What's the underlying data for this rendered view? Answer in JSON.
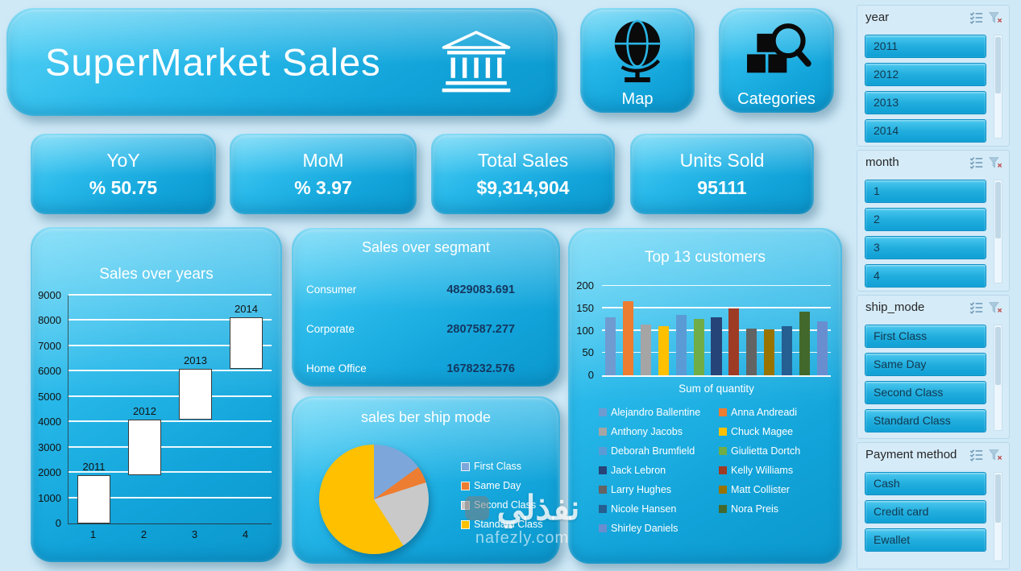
{
  "header": {
    "title": "SuperMarket Sales"
  },
  "nav": {
    "map_label": "Map",
    "categories_label": "Categories"
  },
  "kpis": [
    {
      "title": "YoY",
      "value": "% 50.75"
    },
    {
      "title": "MoM",
      "value": "% 3.97"
    },
    {
      "title": "Total Sales",
      "value": "$9,314,904"
    },
    {
      "title": "Units Sold",
      "value": "95111"
    }
  ],
  "chart_data": [
    {
      "type": "bar",
      "subtype": "waterfall",
      "title": "Sales over years",
      "categories": [
        "1",
        "2",
        "3",
        "4"
      ],
      "bars": [
        {
          "label": "2011",
          "start": 0,
          "end": 1900
        },
        {
          "label": "2012",
          "start": 1900,
          "end": 4100
        },
        {
          "label": "2013",
          "start": 4100,
          "end": 6100
        },
        {
          "label": "2014",
          "start": 6100,
          "end": 8150
        }
      ],
      "ylim": [
        0,
        9000
      ],
      "ytick_step": 1000,
      "bar_color": "#ffffff",
      "grid": true
    },
    {
      "type": "table",
      "title": "Sales over segmant",
      "rows": [
        {
          "label": "Consumer",
          "value": "4829083.691"
        },
        {
          "label": "Corporate",
          "value": "2807587.277"
        },
        {
          "label": "Home Office",
          "value": "1678232.576"
        }
      ]
    },
    {
      "type": "pie",
      "title": "sales ber ship mode",
      "legend_position": "right",
      "slices": [
        {
          "label": "First Class",
          "pct": 15,
          "color": "#7da7db"
        },
        {
          "label": "Same Day",
          "pct": 5,
          "color": "#ed7d31"
        },
        {
          "label": "Second Class",
          "pct": 21,
          "color": "#c9c9c9"
        },
        {
          "label": "Standard Class",
          "pct": 59,
          "color": "#ffc000"
        }
      ]
    },
    {
      "type": "bar",
      "title": "Top 13 customers",
      "xlabel": "Sum of quantity",
      "ylim": [
        0,
        200
      ],
      "ytick_step": 50,
      "grid": true,
      "legend_position": "bottom",
      "series": [
        {
          "name": "Alejandro Ballentine",
          "value": 130,
          "color": "#6f9bd1"
        },
        {
          "name": "Anna Andreadi",
          "value": 165,
          "color": "#ed7d31"
        },
        {
          "name": "Anthony Jacobs",
          "value": 113,
          "color": "#a5a5a5"
        },
        {
          "name": "Chuck Magee",
          "value": 110,
          "color": "#ffc000"
        },
        {
          "name": "Deborah Brumfield",
          "value": 135,
          "color": "#5b9bd5"
        },
        {
          "name": "Giulietta Dortch",
          "value": 127,
          "color": "#70ad47"
        },
        {
          "name": "Jack Lebron",
          "value": 130,
          "color": "#264478"
        },
        {
          "name": "Kelly Williams",
          "value": 150,
          "color": "#9e3b25"
        },
        {
          "name": "Larry Hughes",
          "value": 105,
          "color": "#636363"
        },
        {
          "name": "Matt Collister",
          "value": 103,
          "color": "#997300"
        },
        {
          "name": "Nicole Hansen",
          "value": 110,
          "color": "#255e91"
        },
        {
          "name": "Nora Preis",
          "value": 142,
          "color": "#43682b"
        },
        {
          "name": "Shirley Daniels",
          "value": 120,
          "color": "#698ed0"
        }
      ]
    }
  ],
  "slicers": [
    {
      "title": "year",
      "items": [
        "2011",
        "2012",
        "2013",
        "2014"
      ]
    },
    {
      "title": "month",
      "items": [
        "1",
        "2",
        "3",
        "4"
      ]
    },
    {
      "title": "ship_mode",
      "items": [
        "First Class",
        "Same Day",
        "Second Class",
        "Standard Class"
      ]
    },
    {
      "title": "Payment method",
      "items": [
        "Cash",
        "Credit card",
        "Ewallet"
      ]
    }
  ],
  "icons": {
    "header": "bank-icon",
    "map": "globe-icon",
    "categories": "boxes-magnifier-icon",
    "slicer_header": [
      "multiselect-icon",
      "clear-filter-icon"
    ]
  },
  "colors": {
    "background": "#cfe9f7",
    "panel_cyan": "#1fb0e2",
    "value_text": "#14375f"
  },
  "watermark": {
    "name": "نفذلي",
    "domain": "nafezly.com"
  }
}
